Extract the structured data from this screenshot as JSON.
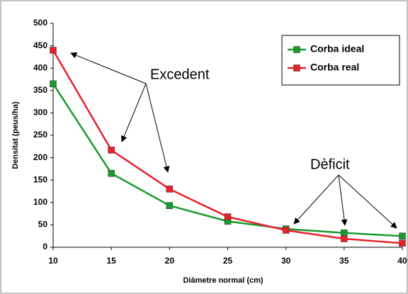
{
  "chart_data": {
    "type": "line",
    "xlabel": "Diàmetre normal (cm)",
    "ylabel": "Densitat (peus/ha)",
    "x": [
      10,
      15,
      20,
      25,
      30,
      35,
      40
    ],
    "series": [
      {
        "name": "Corba ideal",
        "color": "#1a9a2e",
        "values": [
          365,
          165,
          93,
          58,
          41,
          32,
          25
        ]
      },
      {
        "name": "Corba real",
        "color": "#e8202a",
        "values": [
          440,
          217,
          130,
          68,
          38,
          19,
          9
        ]
      }
    ],
    "xlim": [
      10,
      40
    ],
    "xticks": [
      10,
      15,
      20,
      25,
      30,
      35,
      40
    ],
    "ylim": [
      0,
      500
    ],
    "yticks": [
      0,
      50,
      100,
      150,
      200,
      250,
      300,
      350,
      400,
      450,
      500
    ],
    "legend": "upper right",
    "annotations": [
      "Excedent",
      "Dèficit"
    ]
  }
}
